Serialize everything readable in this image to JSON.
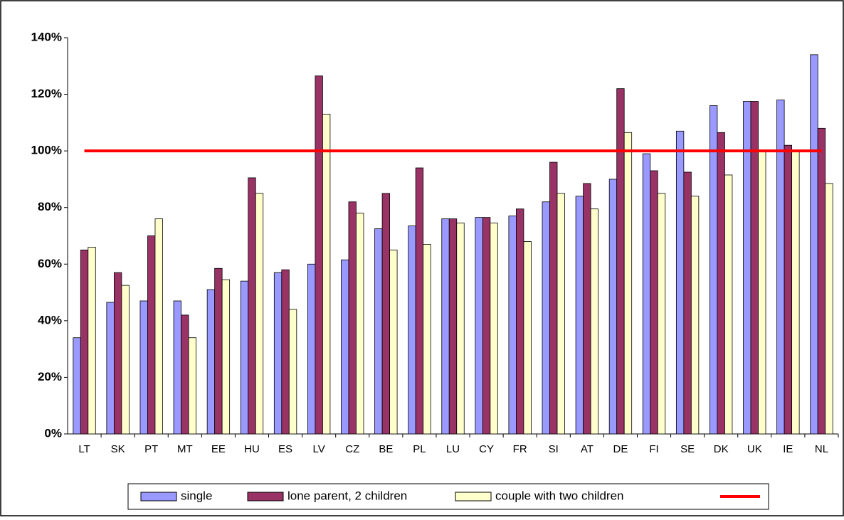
{
  "chart_data": {
    "type": "bar",
    "categories": [
      "LT",
      "SK",
      "PT",
      "MT",
      "EE",
      "HU",
      "ES",
      "LV",
      "CZ",
      "BE",
      "PL",
      "LU",
      "CY",
      "FR",
      "SI",
      "AT",
      "DE",
      "FI",
      "SE",
      "DK",
      "UK",
      "IE",
      "NL"
    ],
    "series": [
      {
        "name": "single",
        "color": "#9999ff",
        "values": [
          34,
          46.5,
          47,
          47,
          51,
          54,
          57,
          60,
          61.5,
          72.5,
          73.5,
          76,
          76.5,
          77,
          82,
          84,
          90,
          99,
          107,
          116,
          117.5,
          118,
          134
        ]
      },
      {
        "name": "lone parent, 2 children",
        "color": "#993366",
        "values": [
          65,
          57,
          70,
          42,
          58.5,
          90.5,
          58,
          126.5,
          82,
          85,
          94,
          76,
          76.5,
          79.5,
          96,
          88.5,
          122,
          93,
          92.5,
          106.5,
          117.5,
          102,
          108
        ]
      },
      {
        "name": "couple with two children",
        "color": "#ffffcc",
        "values": [
          66,
          52.5,
          76,
          34,
          54.5,
          85,
          44,
          113,
          78,
          65,
          67,
          74.5,
          74.5,
          68,
          85,
          79.5,
          106.5,
          85,
          84,
          91.5,
          100,
          100,
          88.5
        ]
      }
    ],
    "reference_line": {
      "value": 100,
      "color": "#ff0000"
    },
    "ylim": [
      0,
      140
    ],
    "yticks": [
      {
        "value": 0,
        "label": "0%"
      },
      {
        "value": 20,
        "label": "20%"
      },
      {
        "value": 40,
        "label": "40%"
      },
      {
        "value": 60,
        "label": "60%"
      },
      {
        "value": 80,
        "label": "80%"
      },
      {
        "value": 100,
        "label": "100%"
      },
      {
        "value": 120,
        "label": "120%"
      },
      {
        "value": 140,
        "label": "140%"
      }
    ],
    "legend": "bottom"
  }
}
